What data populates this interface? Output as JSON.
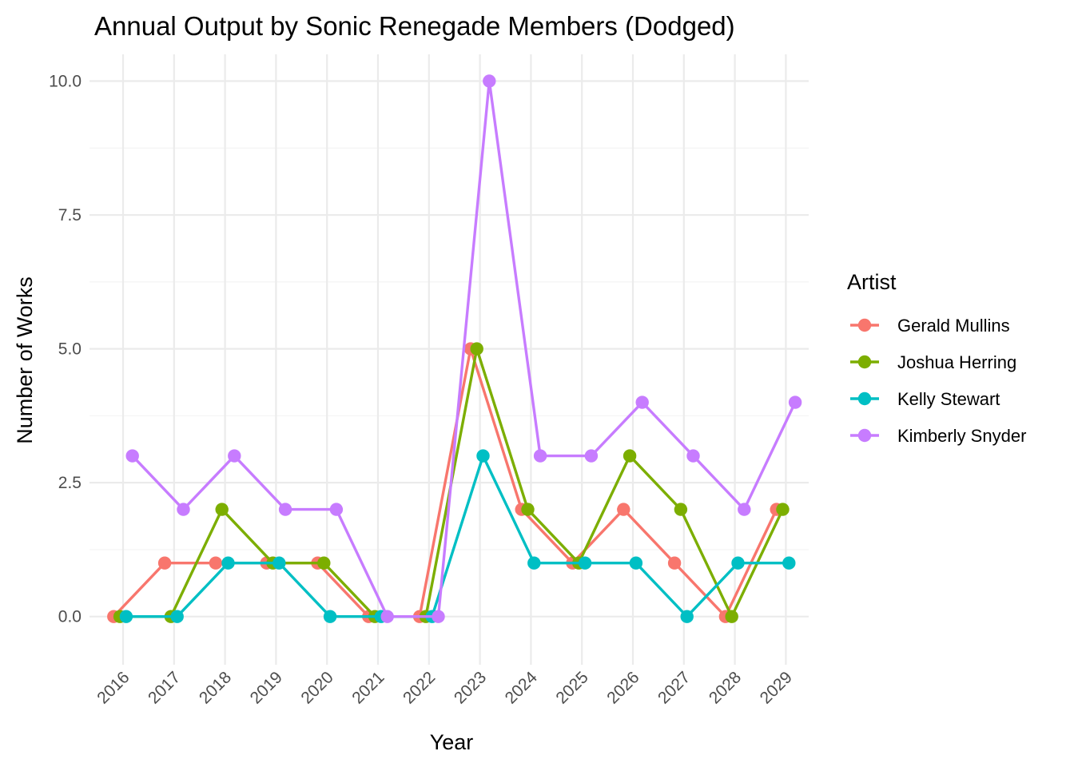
{
  "chart_data": {
    "type": "line",
    "title": "Annual Output by Sonic Renegade Members (Dodged)",
    "xlabel": "Year",
    "ylabel": "Number of Works",
    "categories": [
      "2016",
      "2017",
      "2018",
      "2019",
      "2020",
      "2021",
      "2022",
      "2023",
      "2024",
      "2025",
      "2026",
      "2027",
      "2028",
      "2029"
    ],
    "ylim": [
      -0.9,
      10.5
    ],
    "y_ticks": [
      0.0,
      2.5,
      5.0,
      7.5,
      10.0
    ],
    "y_tick_labels": [
      "0.0",
      "2.5",
      "5.0",
      "7.5",
      "10.0"
    ],
    "grid": true,
    "legend": {
      "title": "Artist",
      "position": "right"
    },
    "series": [
      {
        "name": "Gerald Mullins",
        "color": "#F8766D",
        "values": [
          0,
          1,
          1,
          1,
          1,
          0,
          0,
          5,
          2,
          1,
          2,
          1,
          0,
          2
        ]
      },
      {
        "name": "Joshua Herring",
        "color": "#7CAE00",
        "values": [
          0,
          0,
          2,
          1,
          1,
          0,
          0,
          5,
          2,
          1,
          3,
          2,
          0,
          2
        ]
      },
      {
        "name": "Kelly Stewart",
        "color": "#00BFC4",
        "values": [
          0,
          0,
          1,
          1,
          0,
          0,
          0,
          3,
          1,
          1,
          1,
          0,
          1,
          1
        ]
      },
      {
        "name": "Kimberly Snyder",
        "color": "#C77CFF",
        "values": [
          3,
          2,
          3,
          2,
          2,
          0,
          0,
          10,
          3,
          3,
          4,
          3,
          2,
          4
        ]
      }
    ]
  }
}
